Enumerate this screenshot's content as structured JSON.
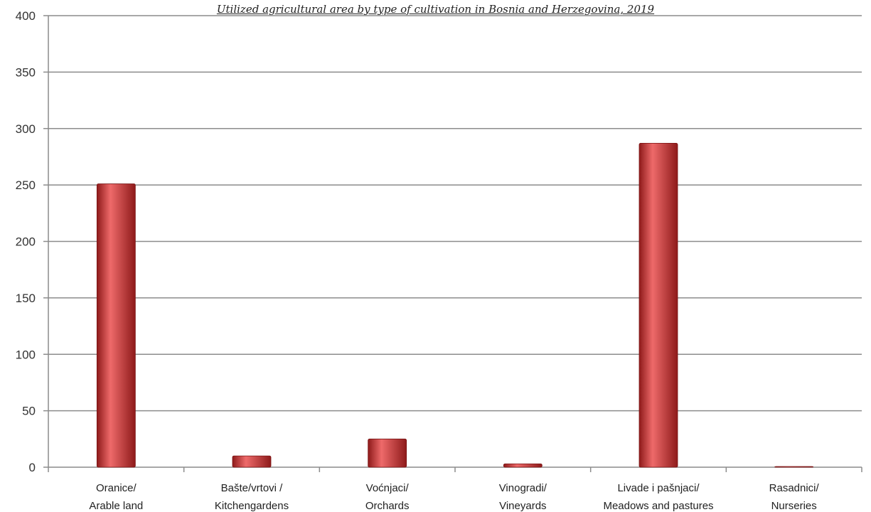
{
  "chart_data": {
    "type": "bar",
    "title": "Utilized agricultural area by type of cultivation in Bosnia and Herzegovina, 2019",
    "xlabel": "",
    "ylabel": "",
    "ylim": [
      0,
      400
    ],
    "yticks": [
      0,
      50,
      100,
      150,
      200,
      250,
      300,
      350,
      400
    ],
    "grid": true,
    "legend": "none",
    "categories": [
      [
        "Oranice/",
        "Arable land"
      ],
      [
        "Bašte/vrtovi /",
        "Kitchengardens"
      ],
      [
        "Voćnjaci/",
        "Orchards"
      ],
      [
        "Vinogradi/",
        "Vineyards"
      ],
      [
        "Livade i pašnjaci/",
        "Meadows and pastures"
      ],
      [
        "Rasadnici/",
        "Nurseries"
      ]
    ],
    "values": [
      251,
      10,
      25,
      3,
      287,
      0.5
    ],
    "colors": {
      "bar": "#d23434",
      "bar_dark": "#8e1a1a",
      "bar_light": "#ee6a6a",
      "grid": "#8c8c8c",
      "axis": "#8c8c8c"
    }
  }
}
